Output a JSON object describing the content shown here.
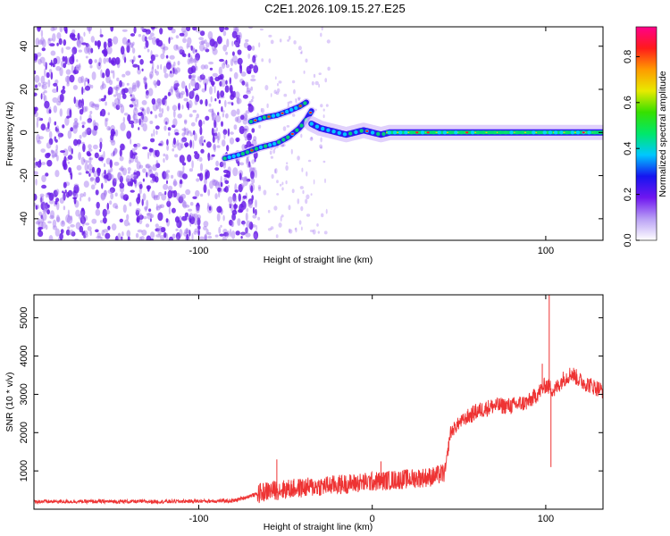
{
  "title": "C2E1.2026.109.15.27.E25",
  "colors": {
    "snr_line": "#ee3333",
    "spectrogram_sparse": "#a070f0",
    "spectrogram_dense": "#6a1ee8"
  },
  "chart_data": [
    {
      "type": "heatmap",
      "name": "spectrogram",
      "xlabel": "Height of straight line (km)",
      "ylabel": "Frequency (Hz)",
      "xlim": [
        -195,
        133
      ],
      "ylim": [
        -50,
        49
      ],
      "x_ticks": [
        -100,
        100
      ],
      "y_ticks": [
        40,
        20,
        0,
        -20,
        -40
      ],
      "colorbar": {
        "label": "Normalized spectral amplitude",
        "range": [
          0.0,
          0.93
        ],
        "ticks": [
          0.0,
          0.2,
          0.4,
          0.6,
          0.8
        ],
        "colormap": [
          "#ffffff",
          "#b9a0f5",
          "#6f16f0",
          "#1515f0",
          "#00c8ff",
          "#00e86a",
          "#36e000",
          "#e8ea00",
          "#ff9a00",
          "#ff1b1b",
          "#ff008a"
        ]
      },
      "noise_region_x": [
        -195,
        -75
      ],
      "signal_tracks": [
        {
          "x": [
            -85,
            -75,
            -65,
            -55,
            -48,
            -42,
            -38,
            -35
          ],
          "y": [
            -12,
            -10,
            -7,
            -5,
            -2,
            2,
            6,
            10
          ]
        },
        {
          "x": [
            -70,
            -62,
            -55,
            -48,
            -42,
            -38
          ],
          "y": [
            5,
            7,
            8,
            10,
            12,
            14
          ]
        },
        {
          "x": [
            -35,
            -30,
            -25,
            -20,
            -15,
            -10,
            -5,
            0,
            5,
            10,
            20,
            40,
            60,
            80,
            100,
            120,
            133
          ],
          "y": [
            4,
            2,
            1,
            0,
            -1,
            0,
            1,
            0,
            -1,
            0,
            0,
            0,
            0,
            0,
            0,
            0,
            0
          ]
        }
      ]
    },
    {
      "type": "line",
      "name": "snr",
      "xlabel": "Height of straight line (km)",
      "ylabel": "SNR (10 * v/v)",
      "xlim": [
        -195,
        133
      ],
      "ylim": [
        0,
        5600
      ],
      "x_ticks": [
        -100,
        0,
        100
      ],
      "y_ticks": [
        1000,
        2000,
        3000,
        4000,
        5000
      ],
      "trend": {
        "x": [
          -195,
          -120,
          -80,
          -70,
          -60,
          -40,
          -20,
          0,
          20,
          35,
          42,
          45,
          50,
          60,
          70,
          80,
          90,
          95,
          100,
          105,
          110,
          115,
          120,
          125,
          133
        ],
        "y": [
          200,
          200,
          220,
          350,
          480,
          560,
          640,
          720,
          790,
          850,
          950,
          2000,
          2250,
          2550,
          2700,
          2700,
          2800,
          3000,
          3250,
          3100,
          3400,
          3550,
          3350,
          3250,
          3100
        ]
      },
      "spikes": [
        {
          "x": -55,
          "y": 1300
        },
        {
          "x": 5,
          "y": 1250
        },
        {
          "x": 98,
          "y": 3800
        },
        {
          "x": 102,
          "y": 5600
        },
        {
          "x": 103,
          "y": 1100
        }
      ]
    }
  ]
}
